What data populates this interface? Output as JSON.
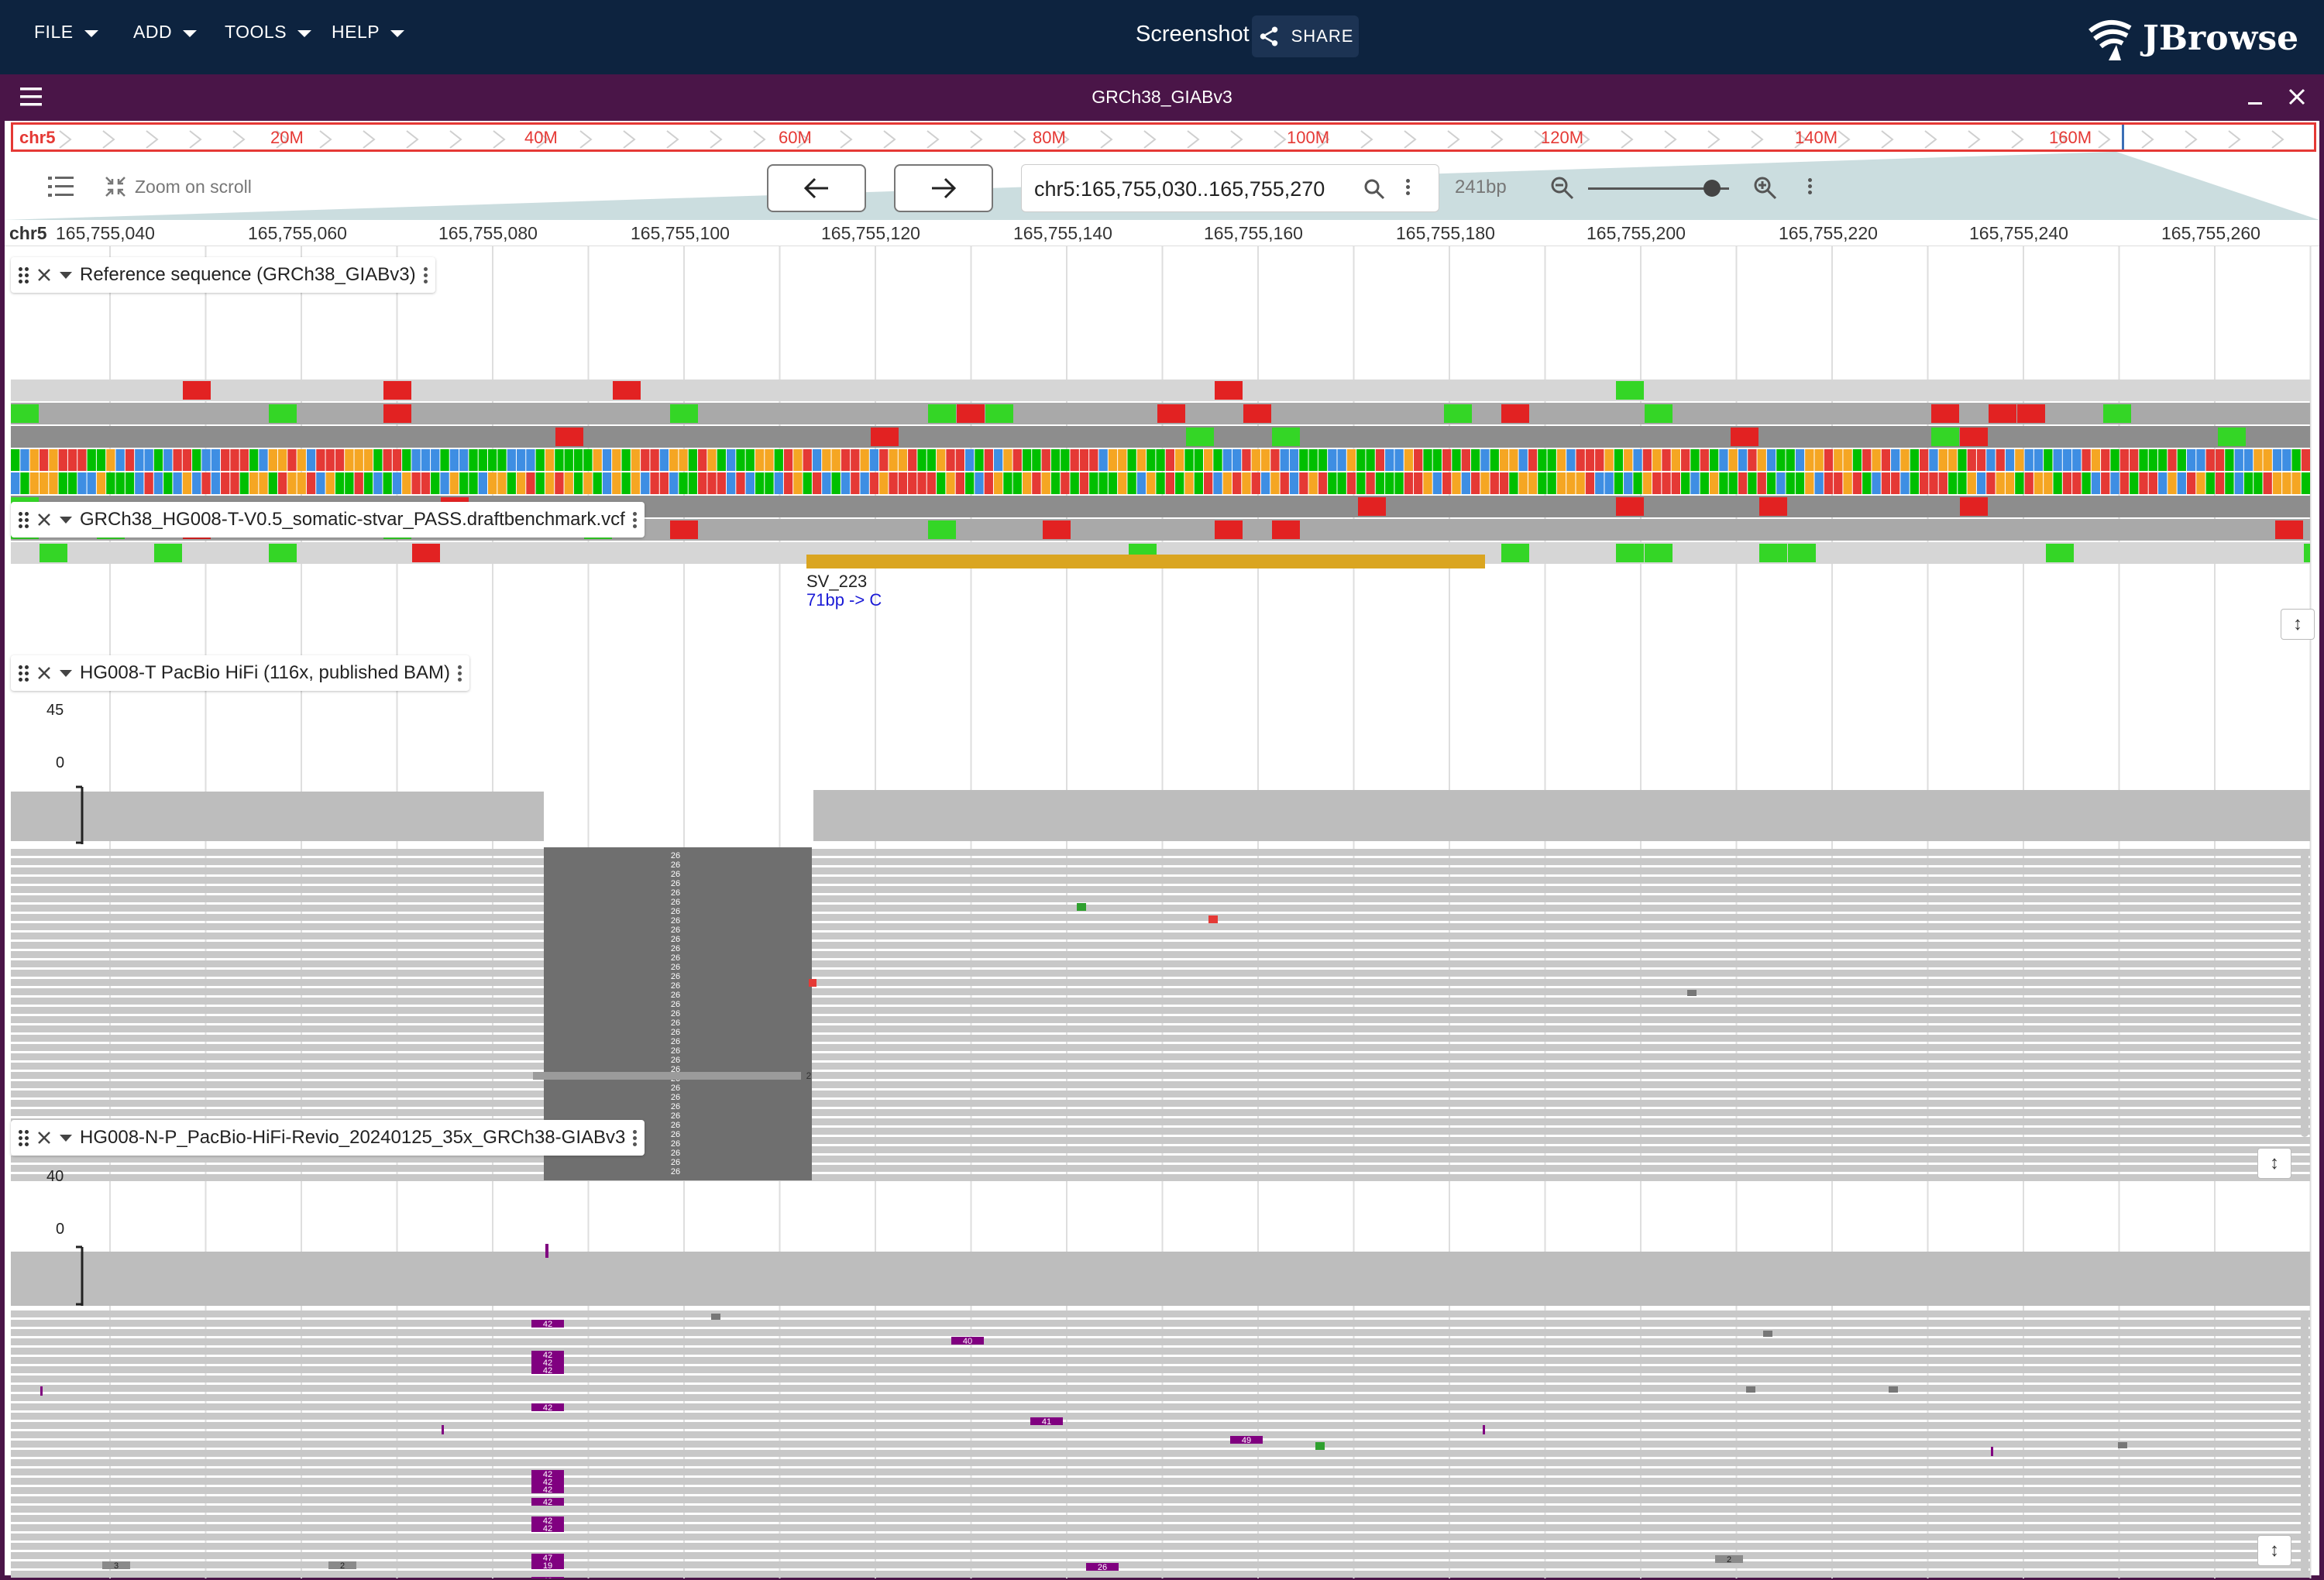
{
  "menubar": {
    "items": [
      {
        "label": "FILE"
      },
      {
        "label": "ADD"
      },
      {
        "label": "TOOLS"
      },
      {
        "label": "HELP"
      }
    ],
    "session_title": "Screenshot",
    "share_label": "SHARE",
    "logo_text": "JBrowse"
  },
  "view": {
    "title": "GRCh38_GIABv3",
    "overview": {
      "chrom": "chr5",
      "labels": [
        "20M",
        "40M",
        "60M",
        "80M",
        "100M",
        "120M",
        "140M",
        "160M"
      ],
      "color": "#e53935"
    },
    "toolbar": {
      "zoom_on_scroll": "Zoom on scroll",
      "location": "chr5:165,755,030..165,755,270",
      "bp": "241bp",
      "zoom_level": 0.88
    },
    "scale": {
      "chrom": "chr5",
      "ticks": [
        "165,755,040",
        "165,755,060",
        "165,755,080",
        "165,755,100",
        "165,755,120",
        "165,755,140",
        "165,755,160",
        "165,755,180",
        "165,755,200",
        "165,755,220",
        "165,755,240",
        "165,755,260"
      ]
    }
  },
  "tracks": {
    "reference": {
      "label": "Reference sequence (GRCh38_GIABv3)"
    },
    "vcf": {
      "label": "GRCh38_HG008-T-V0.5_somatic-stvar_PASS.draftbenchmark.vcf",
      "feature_name": "SV_223",
      "feature_desc": "71bp -> C",
      "feature_color": "#daa520"
    },
    "bam_tumor": {
      "label": "HG008-T PacBio HiFi (116x, published BAM)",
      "max": "45",
      "min": "0",
      "insertion_label": "26",
      "small_label": "2"
    },
    "bam_normal": {
      "label": "HG008-N-P_PacBio-HiFi-Revio_20240125_35x_GRCh38-GIABv3",
      "max": "40",
      "min": "0",
      "insertion_labels": [
        "42",
        "40",
        "41",
        "49",
        "26",
        "19",
        "47"
      ],
      "small_labels": [
        "3",
        "2"
      ]
    }
  },
  "colors": {
    "appbar": "#0d233f",
    "view_header": "#4a1548",
    "base_A": "#00bf00",
    "base_C": "#3e8ee3",
    "base_G": "#f5a623",
    "base_T": "#e53935",
    "insertion": "#800080",
    "read": "#c8c8c8"
  }
}
